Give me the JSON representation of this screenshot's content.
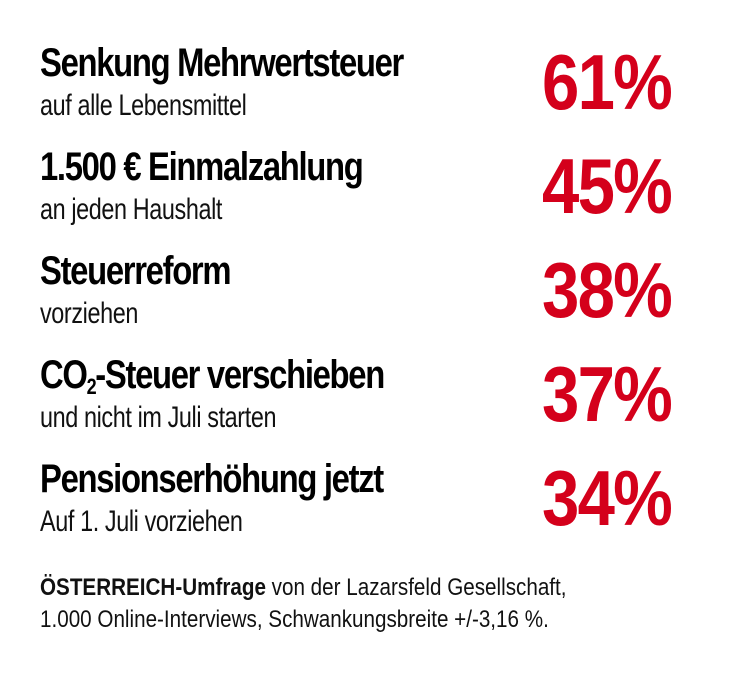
{
  "chart_data": {
    "type": "table",
    "title": "",
    "categories": [
      "Senkung Mehrwertsteuer",
      "1.500 € Einmalzahlung",
      "Steuerreform",
      "CO2-Steuer verschieben",
      "Pensionserhöhung jetzt"
    ],
    "subcategories": [
      "auf alle Lebensmittel",
      "an jeden Haushalt",
      "vorziehen",
      "und nicht im Juli starten",
      "Auf 1. Juli vorziehen"
    ],
    "values": [
      61,
      45,
      38,
      37,
      34
    ],
    "unit": "%",
    "color": "#d4001b"
  },
  "items": [
    {
      "title": "Senkung Mehrwertsteuer",
      "subtitle": "auf alle Lebensmittel",
      "percent": "61%"
    },
    {
      "title": "1.500 € Einmalzahlung",
      "subtitle": "an jeden Haushalt",
      "percent": "45%"
    },
    {
      "title": "Steuerreform",
      "subtitle": "vorziehen",
      "percent": "38%"
    },
    {
      "title_prefix": "CO",
      "title_sub": "2",
      "title_suffix": "-Steuer verschieben",
      "subtitle": "und nicht im Juli starten",
      "percent": "37%"
    },
    {
      "title": "Pensionserhöhung jetzt",
      "subtitle": "Auf 1. Juli vorziehen",
      "percent": "34%"
    }
  ],
  "footer": {
    "bold": "ÖSTERREICH-Umfrage",
    "line1_rest": " von der Lazarsfeld Gesellschaft,",
    "line2": "1.000 Online-Interviews, Schwankungsbreite +/-3,16 %."
  }
}
